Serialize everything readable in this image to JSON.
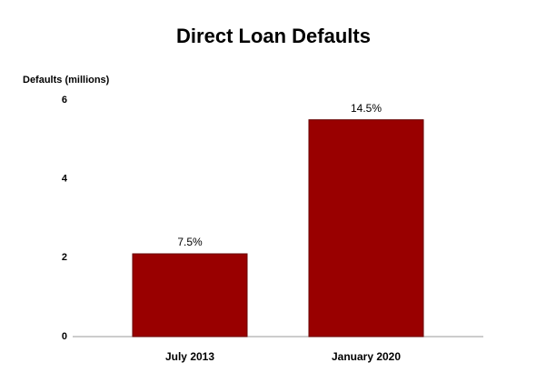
{
  "chart_data": {
    "type": "bar",
    "title": "Direct Loan Defaults",
    "y_label": "Defaults (millions)",
    "categories": [
      "July 2013",
      "January 2020"
    ],
    "values": [
      2.1,
      5.5
    ],
    "annotations": [
      "7.5%",
      "14.5%"
    ],
    "color": "#990000",
    "ylim": [
      0,
      6
    ],
    "yticks": [
      0,
      2,
      4,
      6
    ],
    "grid": false
  }
}
